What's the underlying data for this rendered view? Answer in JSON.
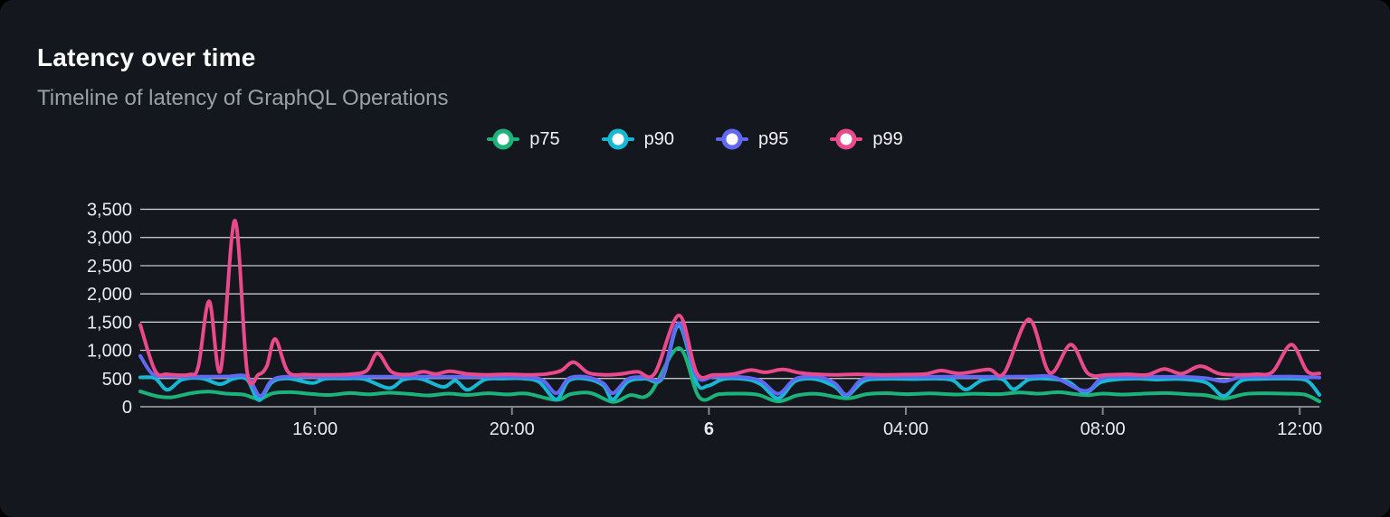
{
  "card": {
    "title": "Latency over time",
    "subtitle": "Timeline of latency of GraphQL Operations"
  },
  "colors": {
    "page_background": "#000000",
    "card_background": "#14171d",
    "title": "#ffffff",
    "subtitle": "#99a0a8",
    "grid_line": "#d4d9de",
    "axis_line": "#81868d",
    "tick_label": "#e8ebee",
    "legend_label": "#f1f3f5"
  },
  "chart_data": {
    "type": "line",
    "title": "Latency over time",
    "xlabel": "",
    "ylabel": "",
    "legend_position": "top-center",
    "grid": true,
    "x_axis": {
      "kind": "time",
      "range_hours": [
        12.45,
        36.4
      ],
      "ticks": [
        {
          "hour": 16,
          "label": "16:00",
          "bold": false
        },
        {
          "hour": 20,
          "label": "20:00",
          "bold": false
        },
        {
          "hour": 24,
          "label": "6",
          "bold": true
        },
        {
          "hour": 28,
          "label": "04:00",
          "bold": false
        },
        {
          "hour": 32,
          "label": "08:00",
          "bold": false
        },
        {
          "hour": 36,
          "label": "12:00",
          "bold": false
        }
      ]
    },
    "y_axis": {
      "range": [
        0,
        3500
      ],
      "ticks": [
        {
          "value": 0,
          "label": "0"
        },
        {
          "value": 500,
          "label": "500"
        },
        {
          "value": 1000,
          "label": "1,000"
        },
        {
          "value": 1500,
          "label": "1,500"
        },
        {
          "value": 2000,
          "label": "2,000"
        },
        {
          "value": 2500,
          "label": "2,500"
        },
        {
          "value": 3000,
          "label": "3,000"
        },
        {
          "value": 3500,
          "label": "3,500"
        }
      ]
    },
    "series": [
      {
        "name": "p75",
        "color": "#1cb37b",
        "points": [
          [
            12.45,
            270
          ],
          [
            12.8,
            185
          ],
          [
            13.1,
            168
          ],
          [
            13.5,
            242
          ],
          [
            13.85,
            268
          ],
          [
            14.2,
            232
          ],
          [
            14.55,
            215
          ],
          [
            14.86,
            138
          ],
          [
            15.15,
            240
          ],
          [
            15.5,
            258
          ],
          [
            15.9,
            228
          ],
          [
            16.3,
            208
          ],
          [
            16.7,
            242
          ],
          [
            17.1,
            220
          ],
          [
            17.5,
            248
          ],
          [
            17.9,
            228
          ],
          [
            18.3,
            200
          ],
          [
            18.7,
            232
          ],
          [
            19.1,
            208
          ],
          [
            19.5,
            238
          ],
          [
            19.9,
            218
          ],
          [
            20.3,
            232
          ],
          [
            20.9,
            120
          ],
          [
            21.2,
            225
          ],
          [
            21.6,
            242
          ],
          [
            22.05,
            85
          ],
          [
            22.4,
            205
          ],
          [
            22.8,
            232
          ],
          [
            23.39,
            1040
          ],
          [
            23.8,
            172
          ],
          [
            24.2,
            222
          ],
          [
            24.6,
            232
          ],
          [
            25.0,
            212
          ],
          [
            25.41,
            95
          ],
          [
            25.8,
            202
          ],
          [
            26.2,
            228
          ],
          [
            26.8,
            148
          ],
          [
            27.2,
            222
          ],
          [
            27.6,
            240
          ],
          [
            28.0,
            222
          ],
          [
            28.5,
            236
          ],
          [
            29.0,
            216
          ],
          [
            29.4,
            230
          ],
          [
            29.9,
            222
          ],
          [
            30.3,
            252
          ],
          [
            30.7,
            232
          ],
          [
            31.1,
            258
          ],
          [
            31.45,
            222
          ],
          [
            31.7,
            205
          ],
          [
            32.0,
            232
          ],
          [
            32.4,
            216
          ],
          [
            32.8,
            230
          ],
          [
            33.3,
            242
          ],
          [
            33.7,
            222
          ],
          [
            34.1,
            202
          ],
          [
            34.46,
            145
          ],
          [
            34.9,
            226
          ],
          [
            35.3,
            238
          ],
          [
            35.7,
            232
          ],
          [
            36.1,
            215
          ],
          [
            36.4,
            95
          ]
        ]
      },
      {
        "name": "p90",
        "color": "#17b8d4",
        "points": [
          [
            12.45,
            520
          ],
          [
            12.75,
            505
          ],
          [
            13.0,
            300
          ],
          [
            13.3,
            480
          ],
          [
            13.7,
            502
          ],
          [
            14.07,
            400
          ],
          [
            14.35,
            498
          ],
          [
            14.62,
            480
          ],
          [
            14.86,
            115
          ],
          [
            15.12,
            430
          ],
          [
            15.45,
            500
          ],
          [
            15.94,
            420
          ],
          [
            16.2,
            495
          ],
          [
            16.6,
            500
          ],
          [
            17.0,
            490
          ],
          [
            17.5,
            330
          ],
          [
            17.8,
            480
          ],
          [
            18.15,
            495
          ],
          [
            18.6,
            350
          ],
          [
            18.85,
            460
          ],
          [
            19.1,
            300
          ],
          [
            19.45,
            480
          ],
          [
            19.8,
            498
          ],
          [
            20.2,
            500
          ],
          [
            20.55,
            440
          ],
          [
            20.9,
            130
          ],
          [
            21.15,
            460
          ],
          [
            21.5,
            495
          ],
          [
            21.85,
            380
          ],
          [
            22.05,
            130
          ],
          [
            22.35,
            440
          ],
          [
            22.7,
            498
          ],
          [
            23.05,
            502
          ],
          [
            23.39,
            1430
          ],
          [
            23.75,
            430
          ],
          [
            23.98,
            370
          ],
          [
            24.3,
            490
          ],
          [
            24.75,
            485
          ],
          [
            25.05,
            400
          ],
          [
            25.41,
            150
          ],
          [
            25.75,
            450
          ],
          [
            26.15,
            490
          ],
          [
            26.55,
            360
          ],
          [
            26.8,
            195
          ],
          [
            27.15,
            455
          ],
          [
            27.6,
            495
          ],
          [
            28.1,
            490
          ],
          [
            28.6,
            498
          ],
          [
            28.95,
            470
          ],
          [
            29.22,
            305
          ],
          [
            29.55,
            470
          ],
          [
            29.95,
            490
          ],
          [
            30.19,
            310
          ],
          [
            30.5,
            480
          ],
          [
            30.9,
            495
          ],
          [
            31.3,
            440
          ],
          [
            31.64,
            250
          ],
          [
            31.95,
            430
          ],
          [
            32.3,
            485
          ],
          [
            32.7,
            498
          ],
          [
            33.1,
            480
          ],
          [
            33.55,
            492
          ],
          [
            34.1,
            430
          ],
          [
            34.46,
            190
          ],
          [
            34.8,
            455
          ],
          [
            35.2,
            492
          ],
          [
            35.6,
            498
          ],
          [
            36.0,
            492
          ],
          [
            36.2,
            430
          ],
          [
            36.4,
            210
          ]
        ]
      },
      {
        "name": "p95",
        "color": "#6168f2",
        "points": [
          [
            12.45,
            900
          ],
          [
            12.7,
            580
          ],
          [
            13.0,
            540
          ],
          [
            13.6,
            532
          ],
          [
            14.2,
            535
          ],
          [
            14.62,
            528
          ],
          [
            14.88,
            190
          ],
          [
            15.1,
            450
          ],
          [
            15.35,
            528
          ],
          [
            15.9,
            532
          ],
          [
            16.5,
            530
          ],
          [
            17.1,
            534
          ],
          [
            17.7,
            530
          ],
          [
            18.3,
            533
          ],
          [
            18.9,
            530
          ],
          [
            19.5,
            532
          ],
          [
            20.1,
            530
          ],
          [
            20.6,
            480
          ],
          [
            20.9,
            240
          ],
          [
            21.15,
            500
          ],
          [
            21.5,
            528
          ],
          [
            21.85,
            420
          ],
          [
            22.05,
            240
          ],
          [
            22.35,
            490
          ],
          [
            22.7,
            528
          ],
          [
            23.05,
            532
          ],
          [
            23.39,
            1480
          ],
          [
            23.75,
            545
          ],
          [
            24.1,
            532
          ],
          [
            24.6,
            530
          ],
          [
            25.05,
            460
          ],
          [
            25.41,
            230
          ],
          [
            25.75,
            490
          ],
          [
            26.2,
            528
          ],
          [
            26.55,
            420
          ],
          [
            26.8,
            215
          ],
          [
            27.1,
            480
          ],
          [
            27.55,
            528
          ],
          [
            28.1,
            530
          ],
          [
            28.7,
            532
          ],
          [
            29.3,
            530
          ],
          [
            29.9,
            532
          ],
          [
            30.5,
            535
          ],
          [
            31.0,
            525
          ],
          [
            31.64,
            280
          ],
          [
            31.98,
            505
          ],
          [
            32.4,
            528
          ],
          [
            33.0,
            530
          ],
          [
            33.6,
            530
          ],
          [
            34.1,
            505
          ],
          [
            34.46,
            450
          ],
          [
            34.8,
            522
          ],
          [
            35.3,
            530
          ],
          [
            35.9,
            533
          ],
          [
            36.4,
            515
          ]
        ]
      },
      {
        "name": "p99",
        "color": "#e84a8b",
        "points": [
          [
            12.45,
            1450
          ],
          [
            12.75,
            640
          ],
          [
            13.0,
            575
          ],
          [
            13.45,
            570
          ],
          [
            13.63,
            720
          ],
          [
            13.85,
            1870
          ],
          [
            14.08,
            640
          ],
          [
            14.37,
            3300
          ],
          [
            14.62,
            620
          ],
          [
            14.85,
            570
          ],
          [
            15.02,
            720
          ],
          [
            15.19,
            1200
          ],
          [
            15.45,
            620
          ],
          [
            15.8,
            570
          ],
          [
            16.2,
            565
          ],
          [
            16.7,
            575
          ],
          [
            17.05,
            640
          ],
          [
            17.27,
            950
          ],
          [
            17.55,
            620
          ],
          [
            17.9,
            570
          ],
          [
            18.2,
            620
          ],
          [
            18.45,
            580
          ],
          [
            18.74,
            630
          ],
          [
            19.1,
            580
          ],
          [
            19.5,
            565
          ],
          [
            19.9,
            575
          ],
          [
            20.3,
            565
          ],
          [
            20.7,
            580
          ],
          [
            21.0,
            640
          ],
          [
            21.25,
            790
          ],
          [
            21.55,
            600
          ],
          [
            21.9,
            565
          ],
          [
            22.2,
            580
          ],
          [
            22.55,
            620
          ],
          [
            22.9,
            590
          ],
          [
            23.39,
            1620
          ],
          [
            23.75,
            600
          ],
          [
            24.1,
            565
          ],
          [
            24.5,
            580
          ],
          [
            24.85,
            650
          ],
          [
            25.15,
            610
          ],
          [
            25.5,
            660
          ],
          [
            25.85,
            600
          ],
          [
            26.2,
            575
          ],
          [
            26.6,
            565
          ],
          [
            27.0,
            575
          ],
          [
            27.5,
            565
          ],
          [
            28.0,
            570
          ],
          [
            28.4,
            580
          ],
          [
            28.72,
            640
          ],
          [
            29.1,
            590
          ],
          [
            29.68,
            660
          ],
          [
            30.0,
            600
          ],
          [
            30.5,
            1550
          ],
          [
            30.92,
            600
          ],
          [
            31.35,
            1100
          ],
          [
            31.7,
            590
          ],
          [
            32.1,
            565
          ],
          [
            32.5,
            575
          ],
          [
            32.9,
            565
          ],
          [
            33.25,
            670
          ],
          [
            33.6,
            585
          ],
          [
            33.98,
            720
          ],
          [
            34.35,
            590
          ],
          [
            34.7,
            565
          ],
          [
            35.1,
            575
          ],
          [
            35.45,
            620
          ],
          [
            35.83,
            1100
          ],
          [
            36.15,
            630
          ],
          [
            36.4,
            590
          ]
        ]
      }
    ]
  }
}
